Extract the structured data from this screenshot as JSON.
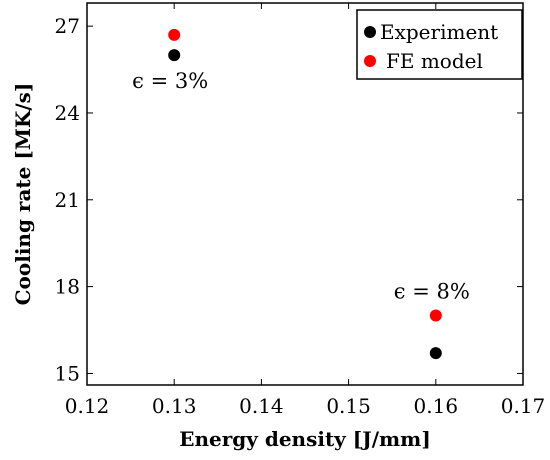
{
  "chart_data": {
    "type": "scatter",
    "xlabel": "Energy density [J/mm]",
    "ylabel": "Cooling rate [MK/s]",
    "xlim": [
      0.12,
      0.17
    ],
    "ylim": [
      14.6,
      27.8
    ],
    "xticks": [
      "0.12",
      "0.13",
      "0.14",
      "0.15",
      "0.16",
      "0.17"
    ],
    "yticks": [
      "15",
      "18",
      "21",
      "24",
      "27"
    ],
    "legend_position": "top-right",
    "grid": false,
    "series": [
      {
        "name": "Experiment",
        "color": "#000000",
        "points": [
          {
            "x": 0.13,
            "y": 26.0
          },
          {
            "x": 0.16,
            "y": 15.7
          }
        ]
      },
      {
        "name": "FE model",
        "color": "#ff0000",
        "points": [
          {
            "x": 0.13,
            "y": 26.7
          },
          {
            "x": 0.16,
            "y": 17.0
          }
        ]
      }
    ],
    "annotations": [
      {
        "text": "ϵ = 3%",
        "x": 0.13,
        "y": 26.0
      },
      {
        "text": "ϵ = 8%",
        "x": 0.16,
        "y": 17.0
      }
    ]
  }
}
